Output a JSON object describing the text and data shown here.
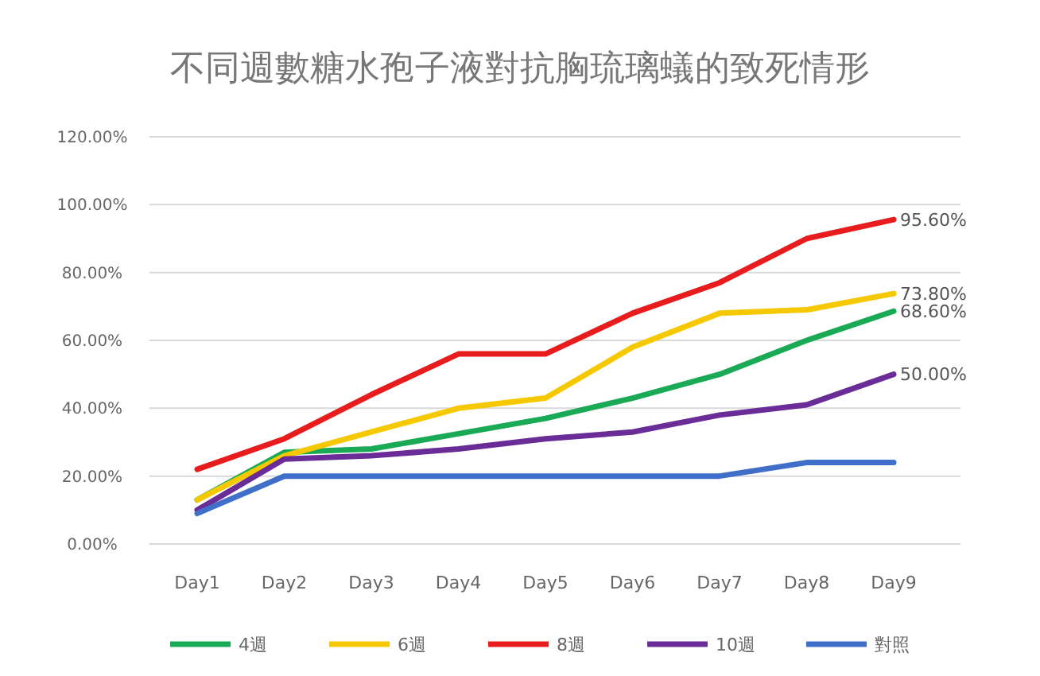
{
  "chart_data": {
    "type": "line",
    "title": "不同週數糖水孢子液對抗胸琉璃蟻的致死情形",
    "categories": [
      "Day1",
      "Day2",
      "Day3",
      "Day4",
      "Day5",
      "Day6",
      "Day7",
      "Day8",
      "Day9"
    ],
    "series": [
      {
        "name": "4週",
        "color": "#1aaa55",
        "values": [
          13,
          27,
          28,
          32.5,
          37,
          43,
          50,
          60,
          68.6
        ],
        "value_labels": [
          null,
          null,
          null,
          null,
          null,
          null,
          null,
          null,
          "68.60%"
        ]
      },
      {
        "name": "6週",
        "color": "#f5c800",
        "values": [
          13,
          26,
          33,
          40,
          43,
          58,
          68,
          69,
          73.8
        ],
        "value_labels": [
          null,
          null,
          null,
          null,
          null,
          null,
          null,
          null,
          "73.80%"
        ]
      },
      {
        "name": "8週",
        "color": "#e81c1c",
        "values": [
          22,
          31,
          44,
          56,
          56,
          68,
          77,
          90,
          95.6
        ],
        "value_labels": [
          null,
          null,
          null,
          null,
          null,
          null,
          null,
          null,
          "95.60%"
        ]
      },
      {
        "name": "10週",
        "color": "#6a2c96",
        "values": [
          10,
          25,
          26,
          28,
          31,
          33,
          38,
          41,
          50
        ],
        "value_labels": [
          null,
          null,
          null,
          null,
          null,
          null,
          null,
          null,
          "50.00%"
        ]
      },
      {
        "name": "對照",
        "color": "#3f6fc8",
        "values": [
          9,
          20,
          20,
          20,
          20,
          20,
          20,
          24,
          24
        ]
      }
    ],
    "ylim": [
      0,
      120
    ],
    "yticks": [
      {
        "value": 0,
        "label": "0.00%"
      },
      {
        "value": 20,
        "label": "20.00%"
      },
      {
        "value": 40,
        "label": "40.00%"
      },
      {
        "value": 60,
        "label": "60.00%"
      },
      {
        "value": 80,
        "label": "80.00%"
      },
      {
        "value": 100,
        "label": "100.00%"
      },
      {
        "value": 120,
        "label": "120.00%"
      }
    ],
    "grid": "y",
    "legend": "bottom",
    "marker": "none",
    "line_style": "solid"
  }
}
